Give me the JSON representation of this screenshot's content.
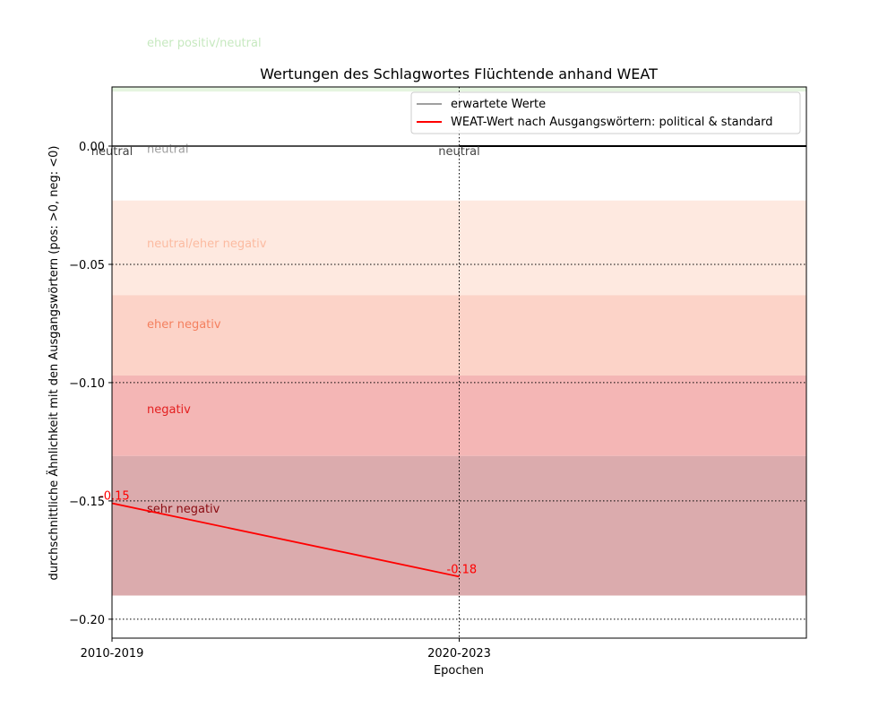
{
  "chart_data": {
    "type": "line",
    "title": "Wertungen des Schlagwortes Flüchtende anhand WEAT",
    "xlabel": "Epochen",
    "ylabel": "durchschnittliche Ähnlichkeit mit den Ausgangswörtern (pos: >0, neg: <0)",
    "categories": [
      "2010-2019",
      "2020-2023"
    ],
    "xlim": [
      0,
      2
    ],
    "ylim": [
      -0.208,
      0.025
    ],
    "yticks": [
      0.0,
      -0.05,
      -0.1,
      -0.15,
      -0.2
    ],
    "ytick_labels": [
      "0.00",
      "−0.05",
      "−0.10",
      "−0.15",
      "−0.20"
    ],
    "grid": "dotted",
    "legend_position": "top-right",
    "series": [
      {
        "name": "erwartete Werte",
        "color": "#808080",
        "values": [
          0,
          0
        ],
        "point_labels": [
          "neutral",
          "neutral"
        ]
      },
      {
        "name": "WEAT-Wert nach Ausgangswörtern: political & standard",
        "color": "#ff0000",
        "values": [
          -0.151,
          -0.182
        ],
        "point_labels": [
          "-0.15",
          "-0.18"
        ]
      }
    ],
    "bands": [
      {
        "label": "eher positiv/neutral",
        "from": 0.023,
        "to": 0.025,
        "color": "#e5f5e0",
        "label_color": "#c7e9c0",
        "label_y": 0.044
      },
      {
        "label": "neutral",
        "from": -0.023,
        "to": 0.023,
        "color": "#ffffff",
        "label_color": "#9e9e9e",
        "label_y": -0.001
      },
      {
        "label": "neutral/eher negativ",
        "from": -0.063,
        "to": -0.023,
        "color": "#fee9e0",
        "label_color": "#fcbba1",
        "label_y": -0.041
      },
      {
        "label": "eher negativ",
        "from": -0.097,
        "to": -0.063,
        "color": "#fcd3c8",
        "label_color": "#f4805f",
        "label_y": -0.075
      },
      {
        "label": "negativ",
        "from": -0.131,
        "to": -0.097,
        "color": "#f4b6b5",
        "label_color": "#e32020",
        "label_y": -0.111
      },
      {
        "label": "sehr negativ",
        "from": -0.19,
        "to": -0.131,
        "color": "#dbabad",
        "label_color": "#8a0a10",
        "label_y": -0.153
      }
    ]
  }
}
